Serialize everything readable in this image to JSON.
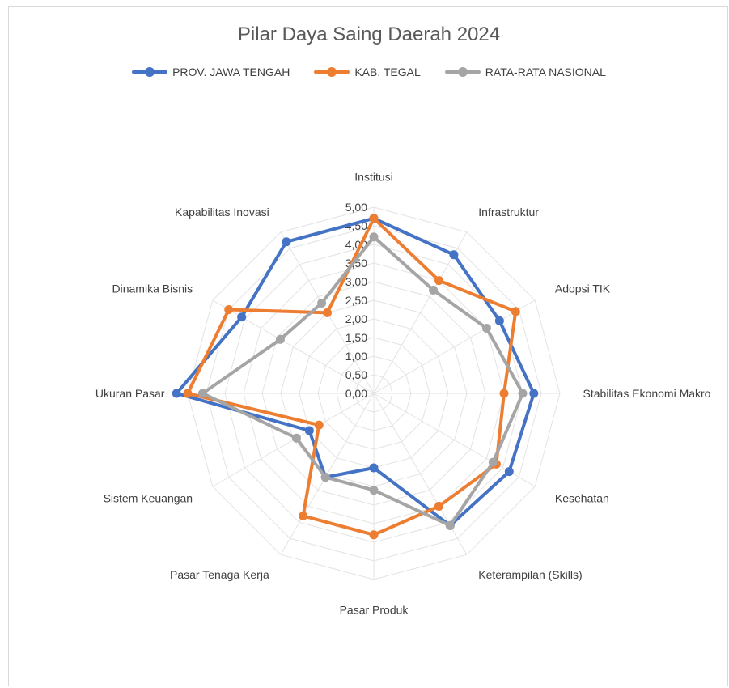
{
  "chart_data": {
    "type": "radar",
    "title": "Pilar Daya Saing Daerah 2024",
    "categories": [
      "Institusi",
      "Infrastruktur",
      "Adopsi TIK",
      "Stabilitas Ekonomi Makro",
      "Kesehatan",
      "Keterampilan (Skills)",
      "Pasar Produk",
      "Pasar Tenaga Kerja",
      "Sistem Keuangan",
      "Ukuran Pasar",
      "Dinamika Bisnis",
      "Kapabilitas Inovasi"
    ],
    "ticks": [
      "0,00",
      "0,50",
      "1,00",
      "1,50",
      "2,00",
      "2,50",
      "3,00",
      "3,50",
      "4,00",
      "4,50",
      "5,00"
    ],
    "rmax": 5,
    "legend_position": "top",
    "series": [
      {
        "name": "PROV. JAWA TENGAH",
        "color": "#4472C4",
        "values": [
          4.7,
          4.3,
          3.9,
          4.3,
          4.2,
          4.1,
          2.0,
          2.6,
          2.0,
          5.3,
          4.1,
          4.7
        ]
      },
      {
        "name": "KAB. TEGAL",
        "color": "#ED7D31",
        "values": [
          4.7,
          3.5,
          4.4,
          3.5,
          3.8,
          3.5,
          3.8,
          3.8,
          1.7,
          5.0,
          4.5,
          2.5
        ]
      },
      {
        "name": "RATA-RATA NASIONAL",
        "color": "#A5A5A5",
        "values": [
          4.2,
          3.2,
          3.5,
          4.0,
          3.7,
          4.1,
          2.6,
          2.6,
          2.4,
          4.6,
          2.9,
          2.8
        ]
      }
    ]
  }
}
